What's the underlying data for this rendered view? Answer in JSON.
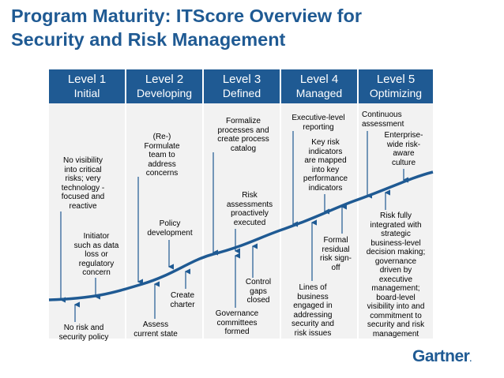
{
  "title": {
    "line1": "Program Maturity: ITScore Overview for",
    "line2": "Security and Risk Management"
  },
  "levels": [
    {
      "level": "Level 1",
      "name": "Initial"
    },
    {
      "level": "Level 2",
      "name": "Developing"
    },
    {
      "level": "Level 3",
      "name": "Defined"
    },
    {
      "level": "Level 4",
      "name": "Managed"
    },
    {
      "level": "Level 5",
      "name": "Optimizing"
    }
  ],
  "labels": {
    "l1_top": [
      "No visibility",
      "into critical",
      "risks; very",
      "technology -",
      "focused and",
      "reactive"
    ],
    "l1_mid": [
      "Initiator",
      "such as data",
      "loss or",
      "regulatory",
      "concern"
    ],
    "l1_bottom": [
      "No risk and",
      "security policy"
    ],
    "l2_top": [
      "(Re-)",
      "Formulate",
      "team to",
      "address",
      "concerns"
    ],
    "l2_mid": [
      "Policy",
      "development"
    ],
    "l2_charter": [
      "Create",
      "charter"
    ],
    "l2_bottom": [
      "Assess",
      "current state"
    ],
    "l3_top": [
      "Formalize",
      "processes and",
      "create process",
      "catalog"
    ],
    "l3_mid": [
      "Risk",
      "assessments",
      "proactively",
      "executed"
    ],
    "l3_gaps": [
      "Control",
      "gaps",
      "closed"
    ],
    "l3_bottom": [
      "Governance",
      "committees",
      "formed"
    ],
    "l4_top": [
      "Executive-level",
      "reporting"
    ],
    "l4_kri": [
      "Key risk",
      "indicators",
      "are mapped",
      "into key",
      "performance",
      "indicators"
    ],
    "l4_formal": [
      "Formal",
      "residual",
      "risk sign-",
      "off"
    ],
    "l4_bottom": [
      "Lines of",
      "business",
      "engaged in",
      "addressing",
      "security and",
      "risk issues"
    ],
    "l5_top": [
      "Continuous",
      "assessment"
    ],
    "l5_culture": [
      "Enterprise-",
      "wide risk-",
      "aware",
      "culture"
    ],
    "l5_bottom": [
      "Risk fully",
      "integrated with",
      "strategic",
      "business-level",
      "decision making;",
      "governance",
      "driven by",
      "executive",
      "management;",
      "board-level",
      "visibility into and",
      "commitment to",
      "security and risk",
      "management"
    ]
  },
  "logo": "Gartner",
  "colors": {
    "accent": "#1f5a93",
    "band": "#f2f2f2",
    "curve": "#1f5a93"
  }
}
